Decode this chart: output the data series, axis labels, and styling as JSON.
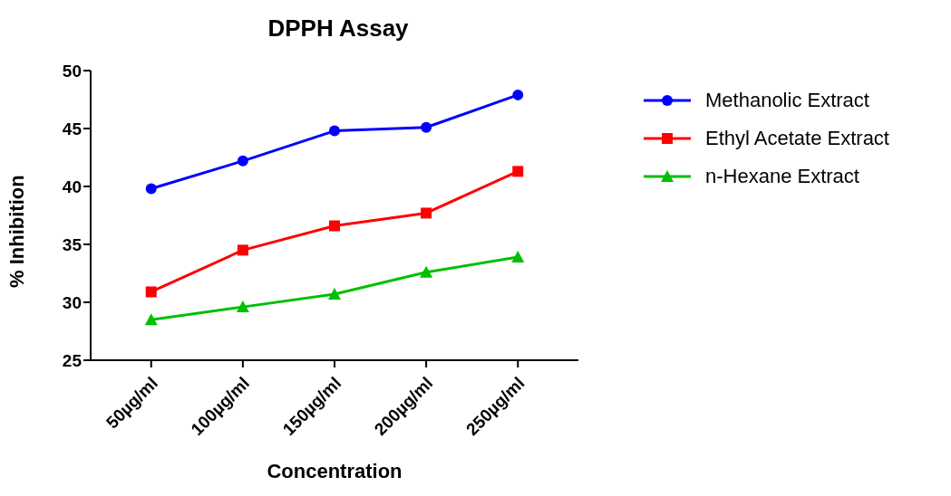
{
  "chart_data": {
    "type": "line",
    "title": "DPPH Assay",
    "xlabel": "Concentration",
    "ylabel": "% Inhibition",
    "categories": [
      "50µg/ml",
      "100µg/ml",
      "150µg/ml",
      "200µg/ml",
      "250µg/ml"
    ],
    "series": [
      {
        "name": "Methanolic Extract",
        "color": "#0000ff",
        "marker": "circle",
        "values": [
          39.8,
          42.2,
          44.8,
          45.1,
          47.9
        ]
      },
      {
        "name": "Ethyl Acetate Extract",
        "color": "#ff0000",
        "marker": "square",
        "values": [
          30.9,
          34.5,
          36.6,
          37.7,
          41.3
        ]
      },
      {
        "name": "n-Hexane Extract",
        "color": "#00c000",
        "marker": "triangle",
        "values": [
          28.5,
          29.6,
          30.7,
          32.6,
          33.9
        ]
      }
    ],
    "ylim": [
      25,
      50
    ],
    "yticks": [
      25,
      30,
      35,
      40,
      45,
      50
    ],
    "grid": false,
    "legend": "top right",
    "line_style": "solid"
  }
}
